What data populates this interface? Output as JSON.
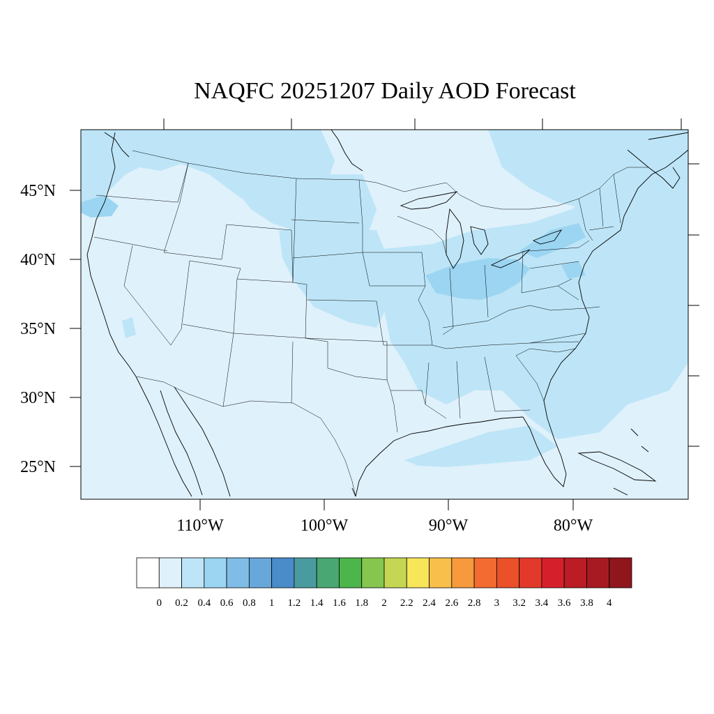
{
  "title": "NAQFC 20251207 Daily AOD Forecast",
  "map": {
    "lat_labels": [
      "45°N",
      "40°N",
      "35°N",
      "30°N",
      "25°N"
    ],
    "lon_labels": [
      "110°W",
      "100°W",
      "90°W",
      "80°W"
    ]
  },
  "colorbar": {
    "tick_labels": [
      "0",
      "0.2",
      "0.4",
      "0.6",
      "0.8",
      "1",
      "1.2",
      "1.4",
      "1.6",
      "1.8",
      "2",
      "2.2",
      "2.4",
      "2.6",
      "2.8",
      "3",
      "3.2",
      "3.4",
      "3.6",
      "3.8",
      "4"
    ],
    "colors": [
      "#ffffff",
      "#dff1fb",
      "#bde5f7",
      "#9bd5f2",
      "#80bde6",
      "#68a7da",
      "#4a8bc9",
      "#4a9b9f",
      "#48a772",
      "#4cb64a",
      "#86c54e",
      "#c5d654",
      "#f7e55a",
      "#f8c04b",
      "#f69a3d",
      "#f36b30",
      "#ea5129",
      "#e2392a",
      "#d5202b",
      "#bb1c25",
      "#a81a22",
      "#8f161d"
    ]
  },
  "colors": {
    "aod_0_2": "#dff1fb",
    "aod_0_4": "#bde5f7",
    "aod_0_6": "#9bd5f2",
    "line": "#000000"
  }
}
